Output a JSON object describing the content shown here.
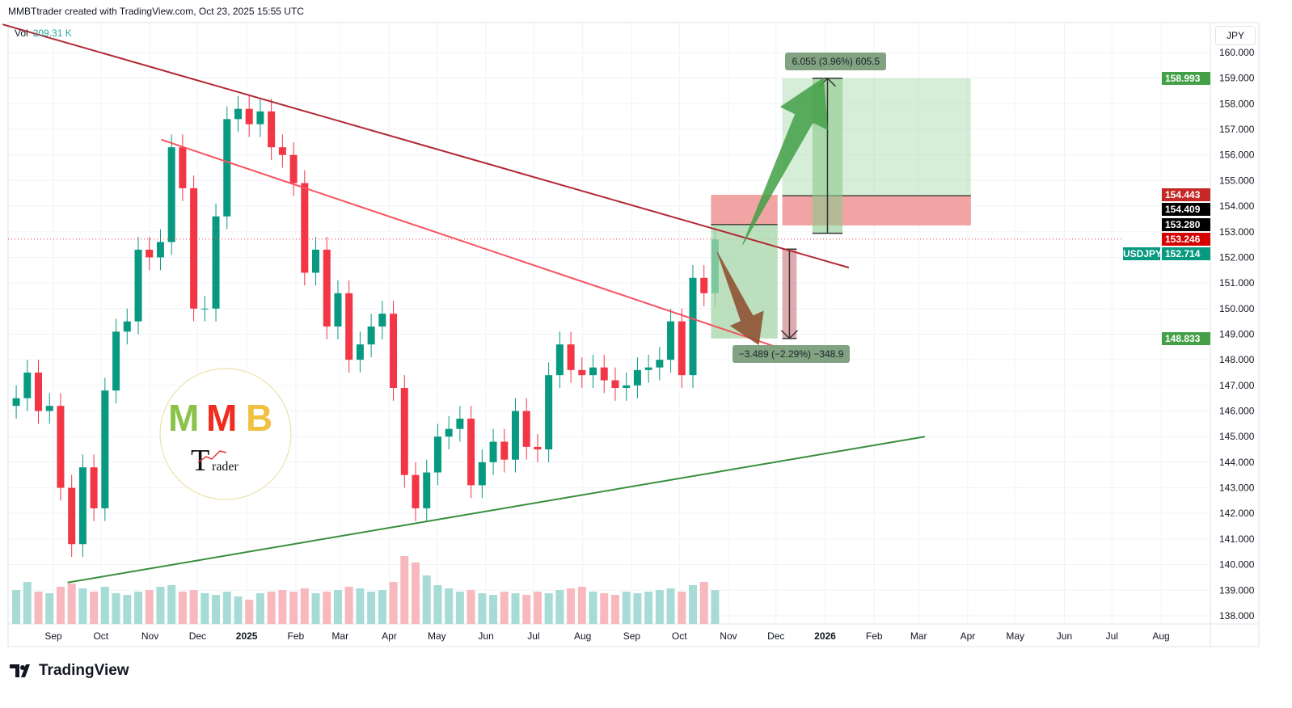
{
  "header": {
    "credit": "MMBTtrader created with TradingView.com, Oct 23, 2025 15:55 UTC"
  },
  "volume_legend": {
    "label": "Vol",
    "value": "209.31 K"
  },
  "currency": "JPY",
  "symbol": "USDJPY",
  "footer": {
    "brand": "TradingView"
  },
  "logo": {
    "text": "MMB Trader"
  },
  "colors": {
    "up": "#089981",
    "down": "#f23645",
    "upper_trendline": "#b22833",
    "mid_trendline": "#f7525f",
    "support_trendline": "#388e3c",
    "profit_zone": "#a5d6a7",
    "loss_zone": "#ef9a9a"
  },
  "price_badges": [
    {
      "value": "158.993",
      "price": 158.993,
      "color": "#43a047"
    },
    {
      "value": "154.443",
      "price": 154.443,
      "color": "#c62828"
    },
    {
      "value": "154.409",
      "price": 154.409,
      "color": "#000000"
    },
    {
      "value": "153.280",
      "price": 153.28,
      "color": "#000000"
    },
    {
      "value": "153.246",
      "price": 153.246,
      "color": "#d50000"
    },
    {
      "value": "152.714",
      "price": 152.714,
      "color": "#089981"
    },
    {
      "value": "148.833",
      "price": 148.833,
      "color": "#43a047"
    }
  ],
  "measures": [
    {
      "label": "6.055 (3.96%) 605.5",
      "from": 152.94,
      "to": 158.993,
      "start": "2025-12-24",
      "end": "2026-01-12"
    },
    {
      "label": "−3.489 (−2.29%) −348.9",
      "from": 152.32,
      "to": 148.833,
      "start": "2025-12-05",
      "end": "2025-12-14"
    }
  ],
  "chart_data": {
    "type": "candlestick",
    "title": "",
    "y_axis": {
      "min": 138,
      "max": 160,
      "step": 1,
      "ticks": [
        "160.000",
        "159.000",
        "158.000",
        "157.000",
        "156.000",
        "155.000",
        "154.000",
        "153.000",
        "152.000",
        "151.000",
        "150.000",
        "149.000",
        "148.000",
        "147.000",
        "146.000",
        "145.000",
        "144.000",
        "143.000",
        "142.000",
        "141.000",
        "140.000",
        "139.000",
        "138.000"
      ]
    },
    "x_axis": {
      "ticks": [
        {
          "label": "Sep",
          "date": "2024-09-01"
        },
        {
          "label": "Oct",
          "date": "2024-10-01"
        },
        {
          "label": "Nov",
          "date": "2024-11-01"
        },
        {
          "label": "Dec",
          "date": "2024-12-01"
        },
        {
          "label": "2025",
          "date": "2025-01-01",
          "bold": true
        },
        {
          "label": "Feb",
          "date": "2025-02-01"
        },
        {
          "label": "Mar",
          "date": "2025-03-01"
        },
        {
          "label": "Apr",
          "date": "2025-04-01"
        },
        {
          "label": "May",
          "date": "2025-05-01"
        },
        {
          "label": "Jun",
          "date": "2025-06-01"
        },
        {
          "label": "Jul",
          "date": "2025-07-01"
        },
        {
          "label": "Aug",
          "date": "2025-08-01"
        },
        {
          "label": "Sep",
          "date": "2025-09-01"
        },
        {
          "label": "Oct",
          "date": "2025-10-01"
        },
        {
          "label": "Nov",
          "date": "2025-11-01"
        },
        {
          "label": "Dec",
          "date": "2025-12-01"
        },
        {
          "label": "2026",
          "date": "2026-01-01",
          "bold": true
        },
        {
          "label": "Feb",
          "date": "2026-02-01"
        },
        {
          "label": "Mar",
          "date": "2026-03-01"
        },
        {
          "label": "Apr",
          "date": "2026-04-01"
        },
        {
          "label": "May",
          "date": "2026-05-01"
        },
        {
          "label": "Jun",
          "date": "2026-06-01"
        },
        {
          "label": "Jul",
          "date": "2026-07-01"
        },
        {
          "label": "Aug",
          "date": "2026-08-01"
        }
      ]
    },
    "grid": true,
    "last_price": 152.714,
    "weekly_closes": [
      [
        "2024-08-05",
        146.5
      ],
      [
        "2024-08-12",
        147.5
      ],
      [
        "2024-08-19",
        146.0
      ],
      [
        "2024-08-26",
        146.2
      ],
      [
        "2024-09-02",
        143.0
      ],
      [
        "2024-09-09",
        140.8
      ],
      [
        "2024-09-16",
        143.8
      ],
      [
        "2024-09-23",
        142.2
      ],
      [
        "2024-09-30",
        146.8
      ],
      [
        "2024-10-07",
        149.1
      ],
      [
        "2024-10-14",
        149.5
      ],
      [
        "2024-10-21",
        152.3
      ],
      [
        "2024-10-28",
        152.0
      ],
      [
        "2024-11-04",
        152.6
      ],
      [
        "2024-11-11",
        156.3
      ],
      [
        "2024-11-18",
        154.7
      ],
      [
        "2024-11-25",
        150.0
      ],
      [
        "2024-12-02",
        150.0
      ],
      [
        "2024-12-09",
        153.6
      ],
      [
        "2024-12-16",
        157.4
      ],
      [
        "2024-12-23",
        157.8
      ],
      [
        "2024-12-30",
        157.2
      ],
      [
        "2025-01-06",
        157.7
      ],
      [
        "2025-01-13",
        156.3
      ],
      [
        "2025-01-20",
        156.0
      ],
      [
        "2025-01-27",
        154.9
      ],
      [
        "2025-02-03",
        151.4
      ],
      [
        "2025-02-10",
        152.3
      ],
      [
        "2025-02-17",
        149.3
      ],
      [
        "2025-02-24",
        150.6
      ],
      [
        "2025-03-03",
        148.0
      ],
      [
        "2025-03-10",
        148.6
      ],
      [
        "2025-03-17",
        149.3
      ],
      [
        "2025-03-24",
        149.8
      ],
      [
        "2025-03-31",
        146.9
      ],
      [
        "2025-04-07",
        143.5
      ],
      [
        "2025-04-14",
        142.2
      ],
      [
        "2025-04-21",
        143.6
      ],
      [
        "2025-04-28",
        145.0
      ],
      [
        "2025-05-05",
        145.3
      ],
      [
        "2025-05-12",
        145.7
      ],
      [
        "2025-05-19",
        143.1
      ],
      [
        "2025-05-26",
        144.0
      ],
      [
        "2025-06-02",
        144.8
      ],
      [
        "2025-06-09",
        144.1
      ],
      [
        "2025-06-16",
        146.0
      ],
      [
        "2025-06-23",
        144.6
      ],
      [
        "2025-06-30",
        144.5
      ],
      [
        "2025-07-07",
        147.4
      ],
      [
        "2025-07-14",
        148.6
      ],
      [
        "2025-07-21",
        147.6
      ],
      [
        "2025-07-28",
        147.4
      ],
      [
        "2025-08-04",
        147.7
      ],
      [
        "2025-08-11",
        147.2
      ],
      [
        "2025-08-18",
        146.9
      ],
      [
        "2025-08-25",
        147.0
      ],
      [
        "2025-09-01",
        147.6
      ],
      [
        "2025-09-08",
        147.7
      ],
      [
        "2025-09-15",
        148.0
      ],
      [
        "2025-09-22",
        149.5
      ],
      [
        "2025-09-29",
        147.4
      ],
      [
        "2025-10-06",
        151.2
      ],
      [
        "2025-10-13",
        150.6
      ],
      [
        "2025-10-20",
        152.7
      ]
    ],
    "weekly_volume_k": [
      210,
      260,
      200,
      190,
      230,
      250,
      220,
      200,
      230,
      190,
      180,
      200,
      210,
      230,
      240,
      200,
      210,
      190,
      180,
      200,
      170,
      150,
      190,
      200,
      210,
      200,
      220,
      190,
      200,
      210,
      230,
      220,
      200,
      210,
      260,
      420,
      380,
      300,
      240,
      220,
      200,
      210,
      190,
      180,
      200,
      190,
      180,
      200,
      190,
      210,
      220,
      230,
      200,
      190,
      180,
      200,
      190,
      200,
      210,
      220,
      200,
      240,
      260,
      209.31
    ],
    "trendlines": [
      {
        "name": "upper",
        "from": [
          "2024-07-31",
          161.1
        ],
        "to": [
          "2026-01-16",
          151.6
        ],
        "color": "#b22833"
      },
      {
        "name": "mid",
        "from": [
          "2024-11-08",
          156.6
        ],
        "to": [
          "2025-12-06",
          148.4
        ],
        "color": "#f7525f"
      },
      {
        "name": "support",
        "from": [
          "2024-09-10",
          139.3
        ],
        "to": [
          "2026-03-05",
          145.0
        ],
        "color": "#388e3c"
      }
    ],
    "positions": [
      {
        "type": "short",
        "start": "2025-10-21",
        "end": "2025-12-02",
        "entry": 153.28,
        "stop": 154.443,
        "target": 148.833
      },
      {
        "type": "long",
        "start": "2025-12-05",
        "end": "2026-04-03",
        "entry": 154.409,
        "stop": 153.246,
        "target": 158.993
      }
    ],
    "arrows": [
      {
        "direction": "up",
        "from": [
          "2025-11-10",
          152.5
        ],
        "to": [
          "2025-12-31",
          159.0
        ],
        "color": "#43a047"
      },
      {
        "direction": "down",
        "from": [
          "2025-10-25",
          152.2
        ],
        "to": [
          "2025-11-20",
          148.6
        ],
        "color": "#8d4a2c"
      }
    ]
  }
}
